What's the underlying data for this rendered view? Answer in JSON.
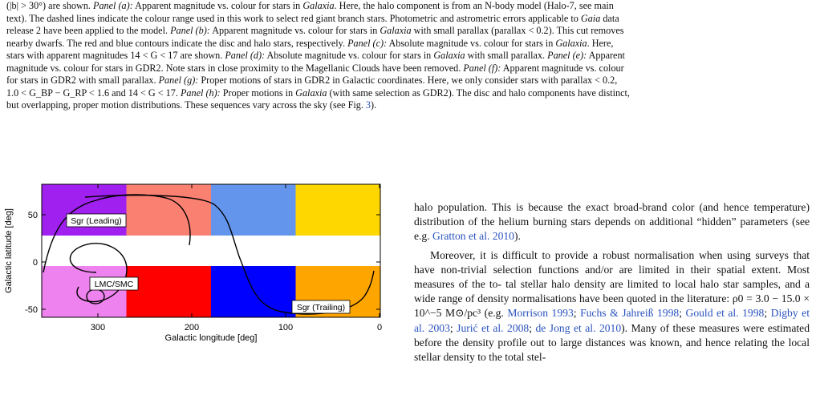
{
  "caption": {
    "l1": "(|b| > 30°) are shown.",
    "l1b": "Panel (a):",
    "l1c": "Apparent magnitude vs. colour for stars in",
    "l1d": "Galaxia",
    "l1e": ". Here, the halo component is from an N-body model (Halo-7, see main",
    "l2": "text). The dashed lines indicate the colour range used in this work to select red giant branch stars. Photometric and astrometric errors applicable to",
    "l2b": "Gaia",
    "l2c": "data",
    "l3": "release 2 have been applied to the model.",
    "l3b": "Panel (b):",
    "l3c": "Apparent magnitude vs. colour for stars in",
    "l3d": "Galaxia",
    "l3e": "with small parallax (parallax < 0.2). This cut removes",
    "l4": "nearby dwarfs. The red and blue contours indicate the disc and halo stars, respectively.",
    "l4b": "Panel (c):",
    "l4c": "Absolute magnitude vs. colour for stars in",
    "l4d": "Galaxia",
    "l4e": ". Here,",
    "l5": "stars with apparent magnitudes 14 < G < 17 are shown.",
    "l5b": "Panel (d):",
    "l5c": "Absolute magnitude vs. colour for stars in",
    "l5d": "Galaxia",
    "l5e": "with small parallax.",
    "l5f": "Panel (e):",
    "l5g": "Apparent",
    "l6": "magnitude vs. colour for stars in GDR2. Note stars in close proximity to the Magellanic Clouds have been removed.",
    "l6b": "Panel (f):",
    "l6c": "Apparent magnitude vs. colour",
    "l7": "for stars in GDR2 with small parallax.",
    "l7b": "Panel (g):",
    "l7c": "Proper motions of stars in GDR2 in Galactic coordinates. Here, we only consider stars with parallax < 0.2,",
    "l8": "1.0 < G_BP − G_RP < 1.6 and 14 < G < 17.",
    "l8b": "Panel (h):",
    "l8c": "Proper motions in",
    "l8d": "Galaxia",
    "l8e": "(with same selection as GDR2). The disc and halo components have distinct,",
    "l9": "but overlapping, proper motion distributions. These sequences vary across the sky (see Fig.",
    "l9b": "3",
    "l9c": ")."
  },
  "figure": {
    "xlabel": "Galactic longitude [deg]",
    "ylabel": "Galactic latitude [deg]",
    "xticks": [
      "300",
      "200",
      "100",
      "0"
    ],
    "yticks": [
      "50",
      "0",
      "-50"
    ],
    "labels": {
      "sgr_leading": "Sgr (Leading)",
      "lmc_smc": "LMC/SMC",
      "sgr_trailing": "Sgr (Trailing)"
    },
    "colors": {
      "north_1": "#a020f0",
      "north_2": "#fa8072",
      "north_3": "#6495ed",
      "north_4": "#ffd700",
      "south_1": "#ee82ee",
      "south_2": "#ff0000",
      "south_3": "#0000ff",
      "south_4": "#ffa500"
    }
  },
  "body": {
    "p1_l1": "halo population. This is because the exact broad-brand color (and",
    "p1_l2": "hence temperature) distribution of the helium burning stars depends",
    "p1_l3a": "on additional “hidden” parameters (see e.g.",
    "p1_l3cite": "Gratton et al. 2010",
    "p1_l3b": ").",
    "p2_l1": "Moreover, it is difficult to provide a robust normalisation",
    "p2_l2": "when using surveys that have non-trivial selection functions and/or",
    "p2_l3": "are limited in their spatial extent. Most measures of the to-",
    "p2_l4": "tal stellar halo density are limited to local halo star samples,",
    "p2_l5": "and a wide range of density normalisations have been quoted in",
    "p2_l6a": "the literature: ρ0 = 3.0 − 15.0 × 10^−5 M⊙/pc³ (e.g.",
    "p2_l6cite": "Morrison",
    "p2_l7cite1": "1993",
    "p2_l7cite2": "Fuchs & Jahreiß 1998",
    "p2_l7cite3": "Gould et al. 1998",
    "p2_l7cite4": "Digby et al. 2003",
    "p2_l8cite1": "Jurić et al. 2008",
    "p2_l8cite2": "de Jong et al. 2010",
    "p2_l8b": "). Many of these measures were",
    "p2_l9": "estimated before the density profile out to large distances was",
    "p2_l10": "known, and hence relating the local stellar density to the total stel-"
  }
}
